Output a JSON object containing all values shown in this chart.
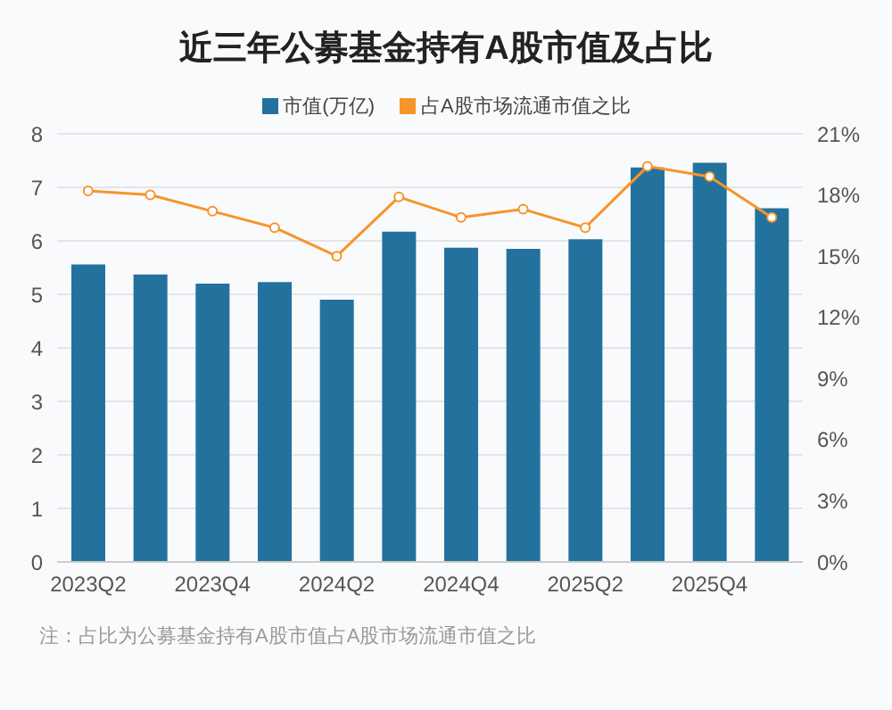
{
  "chart_data": {
    "type": "bar",
    "title": "近三年公募基金持有A股市值及占比",
    "categories": [
      "2023Q2",
      null,
      "2023Q4",
      null,
      "2024Q2",
      null,
      "2024Q4",
      null,
      "2025Q2",
      null,
      "2025Q4",
      null
    ],
    "series": [
      {
        "name": "市值(万亿)",
        "color": "#23729e",
        "values": [
          5.56,
          5.37,
          5.2,
          5.23,
          4.9,
          6.17,
          5.87,
          5.85,
          6.03,
          7.37,
          7.46,
          6.61
        ]
      },
      {
        "name": "占A股市场流通市值之比",
        "type": "line",
        "axis": "y2",
        "color": "#f7942a",
        "values": [
          18.2,
          18.0,
          17.2,
          16.4,
          15.0,
          17.9,
          16.9,
          17.3,
          16.4,
          19.4,
          18.9,
          16.9
        ]
      }
    ],
    "ylim": [
      0,
      8
    ],
    "yticks": [
      0,
      1,
      2,
      3,
      4,
      5,
      6,
      7,
      8
    ],
    "y2lim": [
      0,
      21
    ],
    "y2ticks": [
      {
        "value": 0,
        "label": "0%"
      },
      {
        "value": 3,
        "label": "3%"
      },
      {
        "value": 6,
        "label": "6%"
      },
      {
        "value": 9,
        "label": "9%"
      },
      {
        "value": 12,
        "label": "12%"
      },
      {
        "value": 15,
        "label": "15%"
      },
      {
        "value": 18,
        "label": "18%"
      },
      {
        "value": 21,
        "label": "21%"
      }
    ],
    "grid": "y",
    "legend": "top",
    "marker": "circle",
    "annotations": [
      "注：占比为公募基金持有A股市值占A股市场流通市值之比"
    ]
  }
}
